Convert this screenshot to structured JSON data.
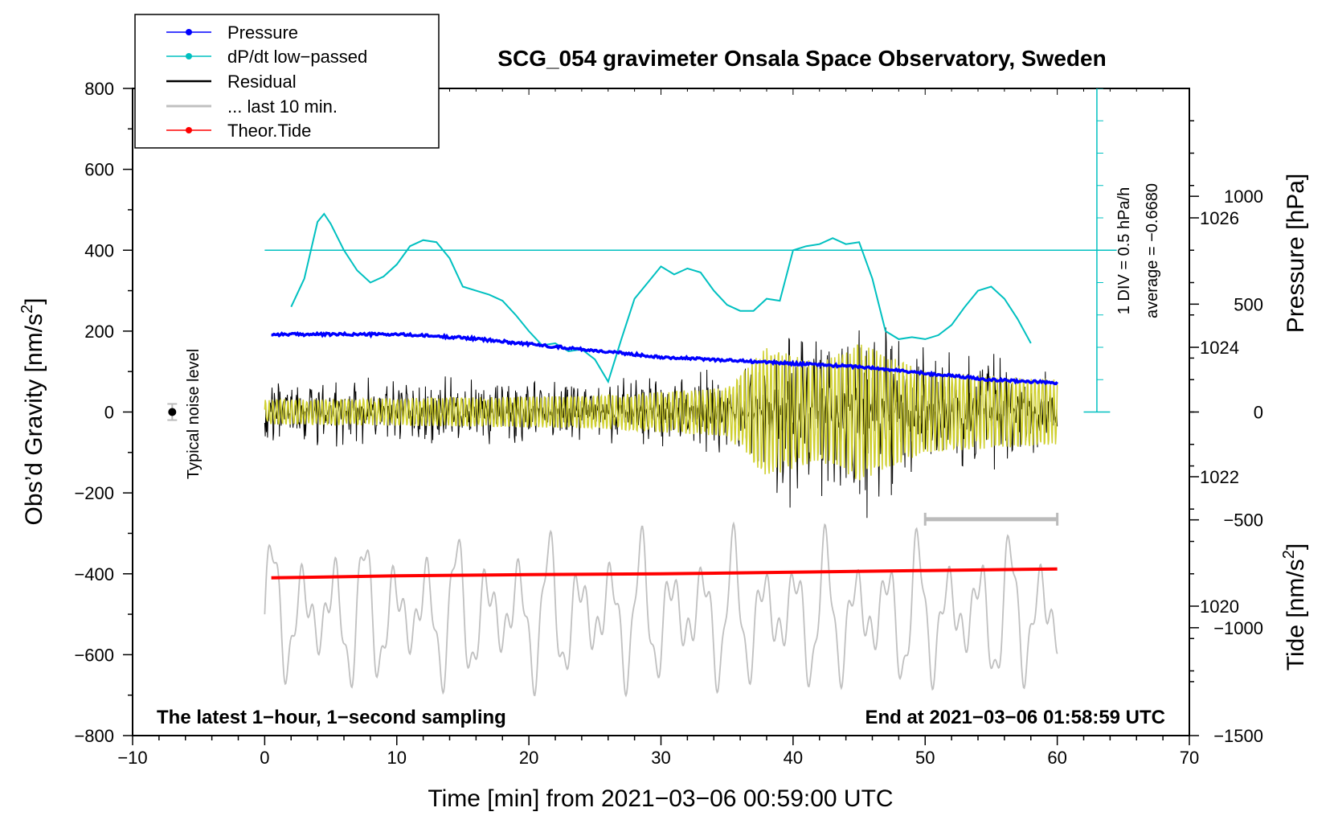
{
  "chart_data": {
    "type": "line",
    "title": "SCG_054 gravimeter Onsala Space Observatory, Sweden",
    "xlabel": "Time [min] from 2021−03−06 00:59:00 UTC",
    "ylabel_left": "Obs’d Gravity [nm/s",
    "ylabel_left_sup": "2",
    "ylabel_left_end": "]",
    "ylabel_right_pressure": "Pressure [hPa]",
    "ylabel_right_tide": "Tide [nm/s",
    "ylabel_right_tide_sup": "2",
    "ylabel_right_tide_end": "]",
    "xlim": [
      -10,
      70
    ],
    "ylim": [
      -800,
      800
    ],
    "pressure_lim": [
      1018,
      1028
    ],
    "tide_lim": [
      -1500,
      1500
    ],
    "x_ticks": [
      "−10",
      "0",
      "10",
      "20",
      "30",
      "40",
      "50",
      "60",
      "70"
    ],
    "y_ticks": [
      "−800",
      "−600",
      "−400",
      "−200",
      "0",
      "200",
      "400",
      "600",
      "800"
    ],
    "pressure_ticks": [
      "1020",
      "1022",
      "1024",
      "1026"
    ],
    "tide_ticks": [
      "1000",
      "500",
      "0",
      "−500",
      "−1000",
      "−1500"
    ],
    "annotations": {
      "bottom_left": "The latest 1−hour, 1−second sampling",
      "bottom_right": "End at 2021−03−06 01:58:59 UTC",
      "scale_div": "1 DIV = 0.5 hPa/h",
      "scale_avg": "average = −0.6680",
      "noise": "Typical noise level"
    },
    "legend": [
      {
        "label": "Pressure",
        "color": "#0000ff"
      },
      {
        "label": "dP/dt low−passed",
        "color": "#00c0c0"
      },
      {
        "label": "Residual",
        "color": "#000000"
      },
      {
        "label": "... last 10 min.",
        "color": "#c0c0c0"
      },
      {
        "label": "Theor.Tide",
        "color": "#ff0000"
      }
    ],
    "series": [
      {
        "name": "Pressure",
        "unit": "hPa",
        "x": [
          0,
          5,
          10,
          15,
          20,
          25,
          30,
          35,
          40,
          45,
          50,
          55,
          60
        ],
        "values": [
          1024.2,
          1024.2,
          1024.2,
          1024.15,
          1024.05,
          1023.95,
          1023.85,
          1023.8,
          1023.75,
          1023.7,
          1023.6,
          1023.5,
          1023.45
        ]
      },
      {
        "name": "dP/dt low−passed",
        "unit": "gravity-axis nm/s2",
        "x": [
          2,
          3,
          4,
          4.5,
          5,
          6,
          7,
          8,
          9,
          10,
          11,
          12,
          13,
          14,
          15,
          16,
          17,
          18,
          19,
          20,
          21,
          22,
          23,
          24,
          25,
          26,
          27,
          28,
          29,
          30,
          31,
          32,
          33,
          34,
          35,
          36,
          37,
          38,
          39,
          40,
          41,
          42,
          43,
          44,
          45,
          46,
          47,
          48,
          49,
          50,
          51,
          52,
          53,
          54,
          55,
          56,
          57,
          58
        ],
        "values": [
          260,
          330,
          470,
          490,
          465,
          400,
          350,
          320,
          335,
          365,
          410,
          425,
          420,
          380,
          310,
          300,
          290,
          275,
          240,
          200,
          165,
          170,
          150,
          155,
          130,
          75,
          180,
          280,
          320,
          360,
          340,
          355,
          345,
          300,
          265,
          250,
          250,
          280,
          275,
          400,
          410,
          415,
          430,
          415,
          420,
          330,
          200,
          180,
          185,
          180,
          190,
          215,
          260,
          300,
          310,
          280,
          230,
          170
        ]
      },
      {
        "name": "Residual",
        "unit": "nm/s2",
        "x_range": [
          0,
          60
        ],
        "envelope": [
          [
            0,
            90
          ],
          [
            10,
            90
          ],
          [
            20,
            90
          ],
          [
            30,
            90
          ],
          [
            37,
            120
          ],
          [
            40,
            260
          ],
          [
            44,
            220
          ],
          [
            46,
            300
          ],
          [
            48,
            200
          ],
          [
            52,
            160
          ],
          [
            60,
            140
          ]
        ]
      },
      {
        "name": "... last 10 min.",
        "unit": "nm/s2",
        "x_range": [
          0,
          60
        ],
        "envelope": [
          [
            0,
            30
          ],
          [
            25,
            40
          ],
          [
            35,
            60
          ],
          [
            38,
            160
          ],
          [
            42,
            120
          ],
          [
            45,
            170
          ],
          [
            50,
            100
          ],
          [
            60,
            80
          ]
        ]
      },
      {
        "name": "Theor.Tide",
        "unit": "nm/s2",
        "x": [
          0,
          10,
          20,
          30,
          40,
          50,
          60
        ],
        "values": [
          -410,
          -405,
          -402,
          -400,
          -396,
          -392,
          -388
        ]
      },
      {
        "name": "Tide (grey)",
        "unit": "nm/s2",
        "x_range": [
          0,
          60
        ],
        "center": -500,
        "amplitude": 180
      }
    ],
    "noise_marker": {
      "x": -7,
      "y": 0,
      "err": 20
    },
    "scale_bar": {
      "x": [
        50,
        60
      ],
      "y": -265
    }
  }
}
